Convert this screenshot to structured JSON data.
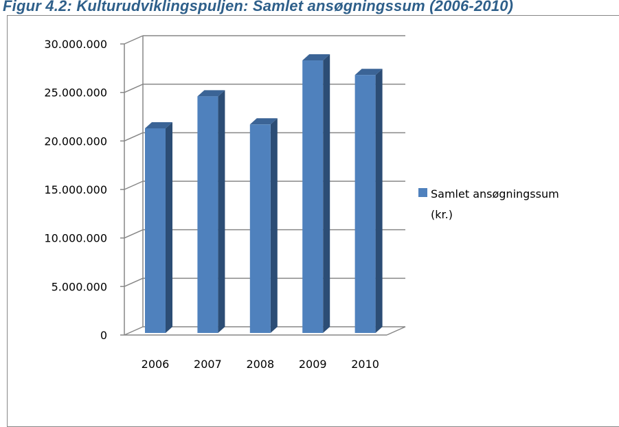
{
  "caption": "Figur 4.2: Kulturudviklingspuljen: Samlet ansøgningssum (2006-2010)",
  "chart_data": {
    "type": "bar",
    "categories": [
      "2006",
      "2007",
      "2008",
      "2009",
      "2010"
    ],
    "series": [
      {
        "name_lines": [
          "Samlet ansøgningssum",
          "(kr.)"
        ],
        "values": [
          21300000,
          24600000,
          21700000,
          28300000,
          26800000
        ]
      }
    ],
    "y_ticks": [
      "0",
      "5.000.000",
      "10.000.000",
      "15.000.000",
      "20.000.000",
      "25.000.000",
      "30.000.000"
    ],
    "ylim": [
      0,
      30000000
    ],
    "grid": true,
    "legend": "right",
    "colors": {
      "front": "#4f81bd",
      "side": "#2c4d75",
      "top": "#3b6496",
      "grid": "#868686"
    }
  }
}
